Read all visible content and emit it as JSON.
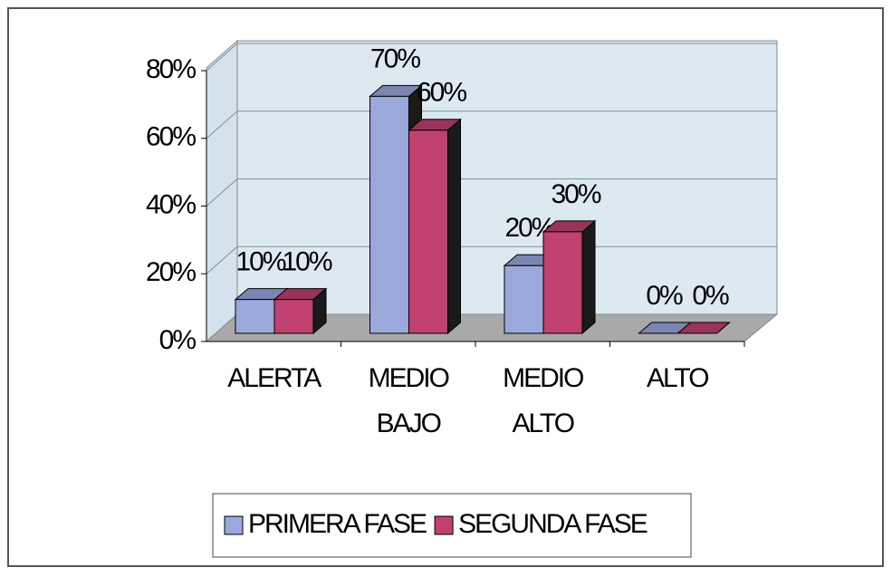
{
  "chart_data": {
    "type": "bar",
    "categories": [
      "ALERTA",
      "MEDIO BAJO",
      "MEDIO ALTO",
      "ALTO"
    ],
    "series": [
      {
        "name": "PRIMERA FASE",
        "color": "#9aa8dc",
        "values": [
          10,
          70,
          20,
          0
        ],
        "value_labels": [
          "10%",
          "70%",
          "20%",
          "0%"
        ]
      },
      {
        "name": "SEGUNDA FASE",
        "color": "#c0406f",
        "values": [
          10,
          60,
          30,
          0
        ],
        "value_labels": [
          "10%",
          "60%",
          "30%",
          "0%"
        ]
      }
    ],
    "ylim": [
      0,
      80
    ],
    "yticks": [
      {
        "value": 0,
        "label": "0%"
      },
      {
        "value": 20,
        "label": "20%"
      },
      {
        "value": 40,
        "label": "40%"
      },
      {
        "value": 60,
        "label": "60%"
      },
      {
        "value": 80,
        "label": "80%"
      }
    ],
    "grid": true,
    "legend": "bottom"
  }
}
